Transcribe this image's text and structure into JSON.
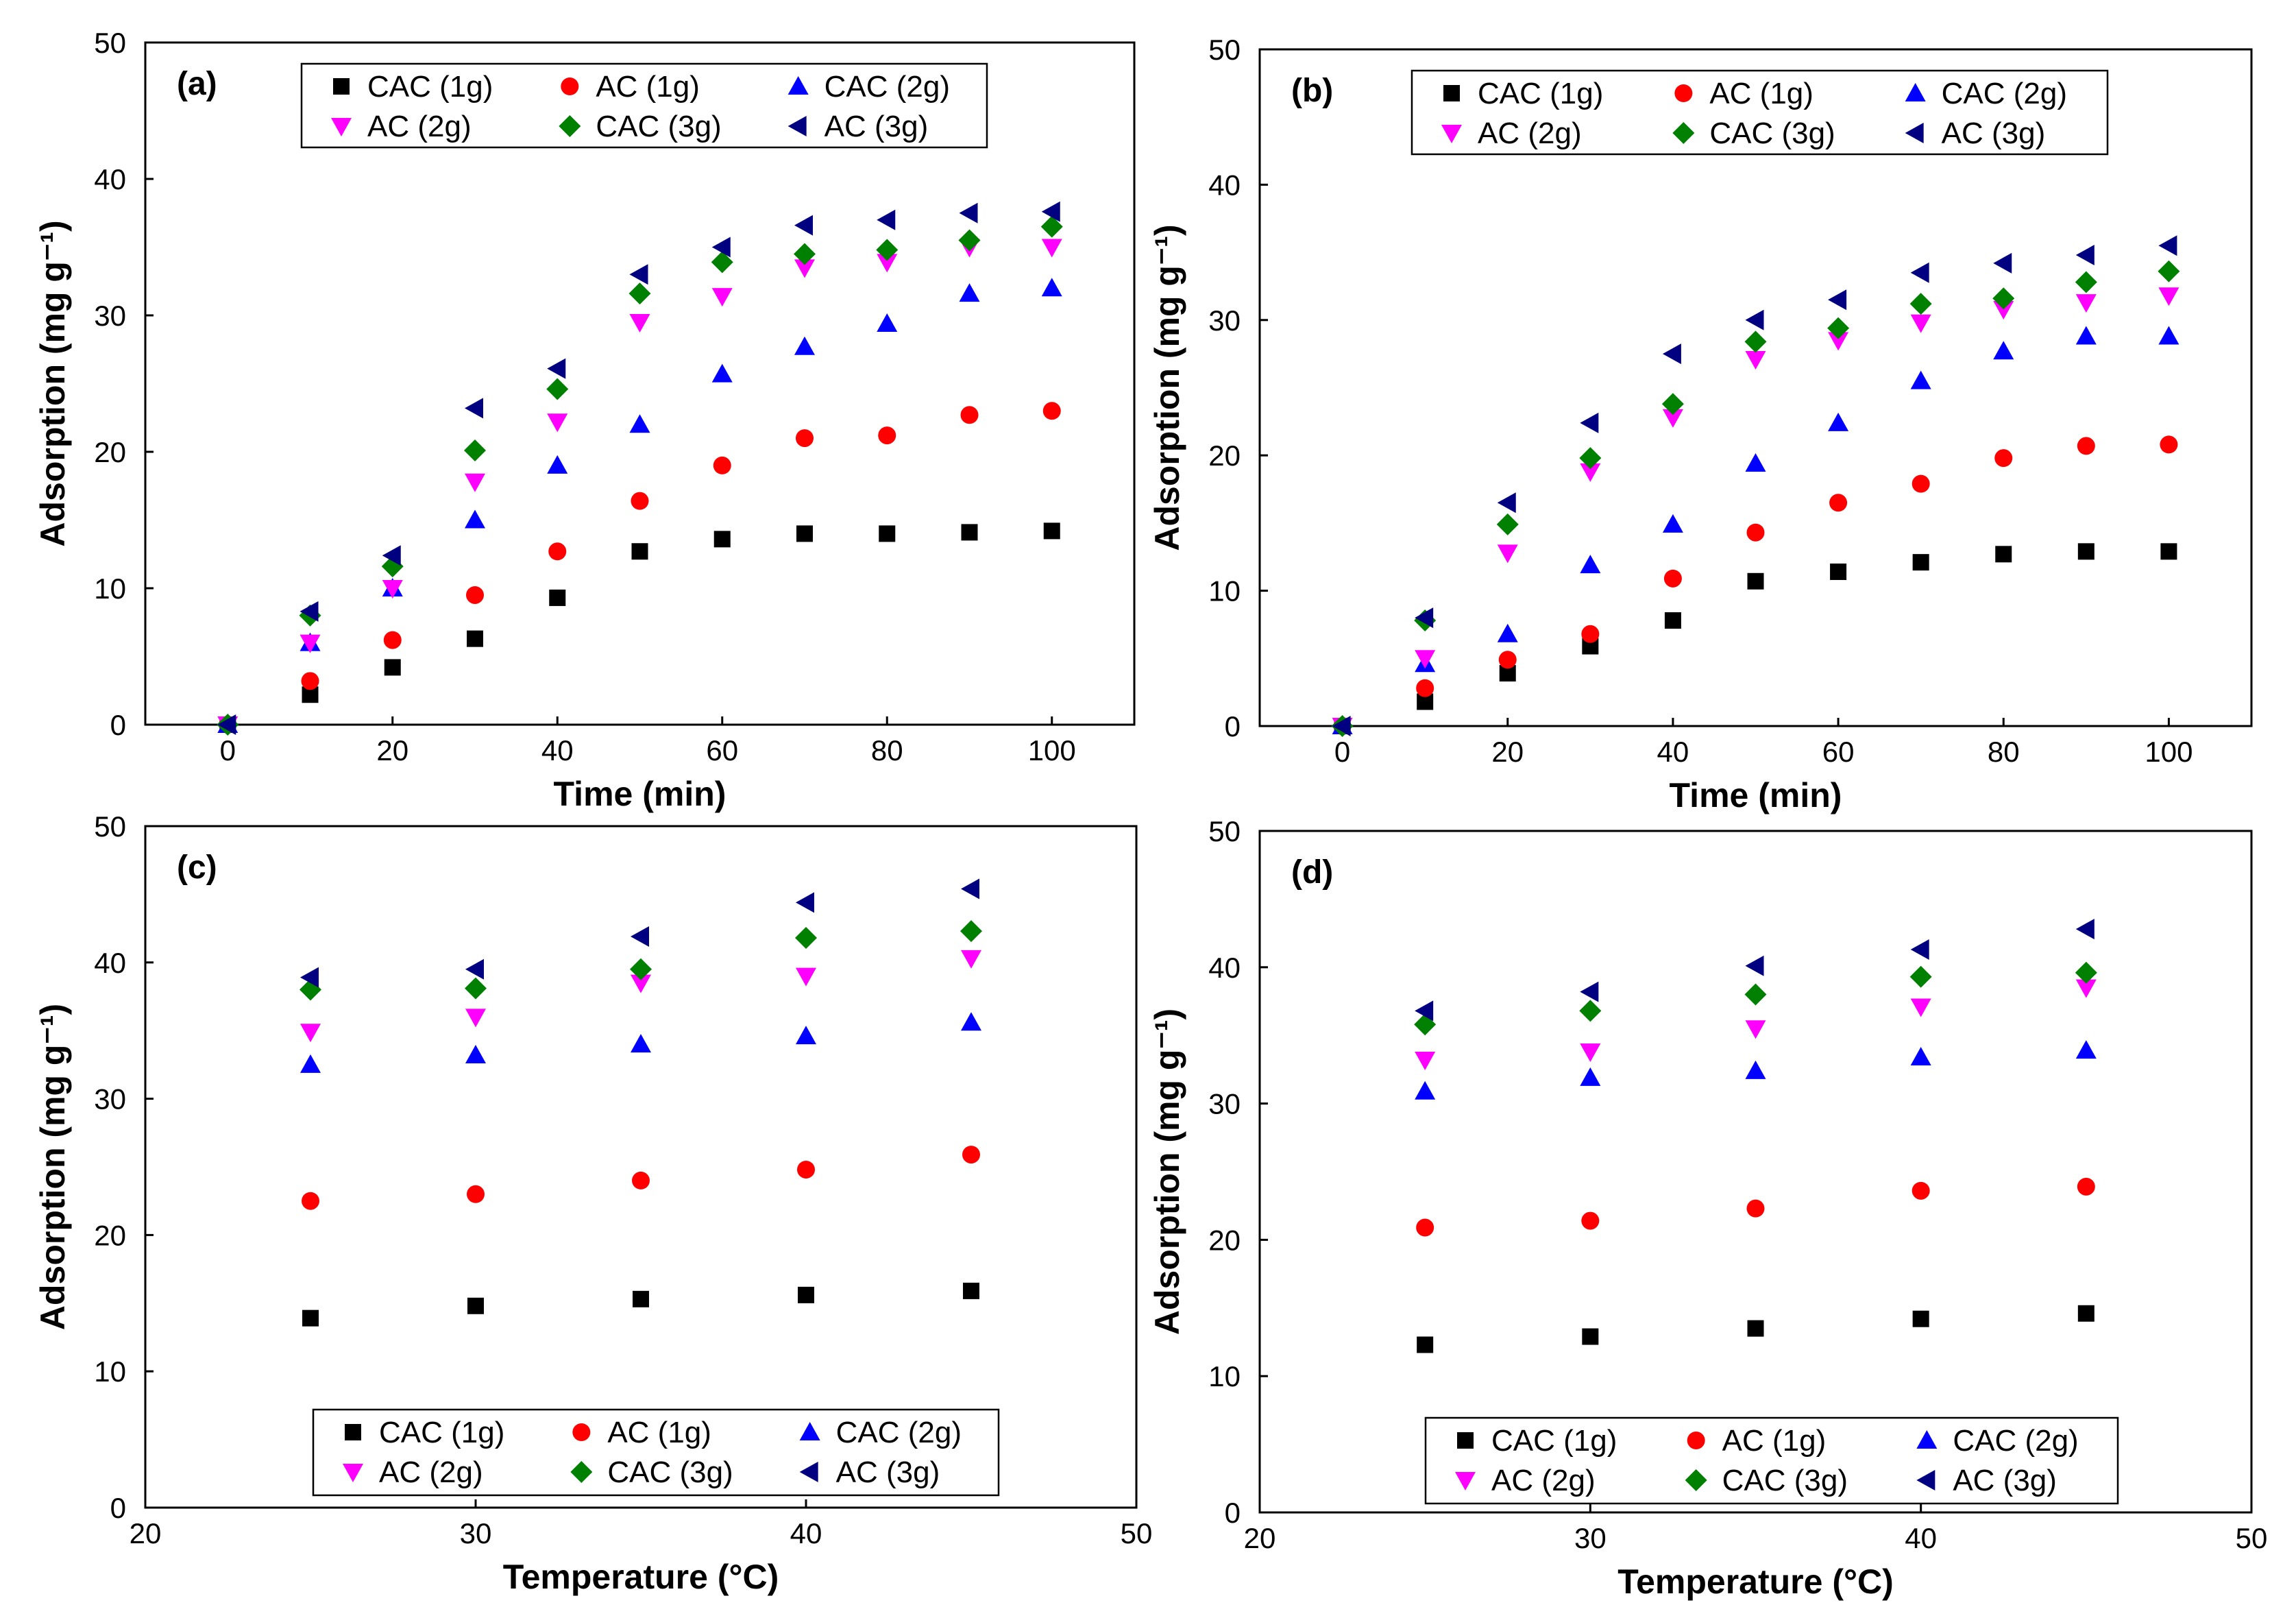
{
  "colors": {
    "CAC (1g)": "#000000",
    "AC (1g)": "#ff0000",
    "CAC (2g)": "#0000ff",
    "AC (2g)": "#ff00ff",
    "CAC (3g)": "#008000",
    "AC (3g)": "#000080"
  },
  "chart_data": [
    {
      "type": "scatter",
      "panel_label": "(a)",
      "xlabel": "Time (min)",
      "ylabel": "Adsorption (mg g⁻¹)",
      "xlim": [
        -10,
        110
      ],
      "ylim": [
        0,
        50
      ],
      "xticks": [
        0,
        20,
        40,
        60,
        80,
        100
      ],
      "yticks": [
        0,
        10,
        20,
        30,
        40,
        50
      ],
      "legend_position": "top",
      "x": [
        0,
        10,
        20,
        30,
        40,
        50,
        60,
        70,
        80,
        90,
        100
      ],
      "series": [
        {
          "name": "CAC (1g)",
          "marker": "square",
          "values": [
            0,
            2.2,
            4.2,
            6.3,
            9.3,
            12.7,
            13.6,
            14.0,
            14.0,
            14.1,
            14.2
          ]
        },
        {
          "name": "AC (1g)",
          "marker": "circle",
          "values": [
            0,
            3.2,
            6.2,
            9.5,
            12.7,
            16.4,
            19.0,
            21.0,
            21.2,
            22.7,
            23.0
          ]
        },
        {
          "name": "CAC (2g)",
          "marker": "triangle-up",
          "values": [
            0,
            6.0,
            10.0,
            15.0,
            19.0,
            22.0,
            25.7,
            27.7,
            29.4,
            31.6,
            32.0
          ]
        },
        {
          "name": "AC (2g)",
          "marker": "triangle-down",
          "values": [
            0,
            6.0,
            10.0,
            17.8,
            22.2,
            29.5,
            31.4,
            33.5,
            33.9,
            35.0,
            35.0
          ]
        },
        {
          "name": "CAC (3g)",
          "marker": "diamond",
          "values": [
            0,
            8.0,
            11.6,
            20.1,
            24.6,
            31.6,
            33.9,
            34.5,
            34.8,
            35.5,
            36.5
          ]
        },
        {
          "name": "AC (3g)",
          "marker": "triangle-left",
          "values": [
            0,
            8.3,
            12.4,
            23.2,
            26.1,
            33.0,
            35.0,
            36.6,
            37.0,
            37.5,
            37.6
          ]
        }
      ]
    },
    {
      "type": "scatter",
      "panel_label": "(b)",
      "xlabel": "Time (min)",
      "ylabel": "Adsorption (mg g⁻¹)",
      "xlim": [
        -10,
        110
      ],
      "ylim": [
        0,
        50
      ],
      "xticks": [
        0,
        20,
        40,
        60,
        80,
        100
      ],
      "yticks": [
        0,
        10,
        20,
        30,
        40,
        50
      ],
      "legend_position": "top",
      "x": [
        0,
        10,
        20,
        30,
        40,
        50,
        60,
        70,
        80,
        90,
        100
      ],
      "series": [
        {
          "name": "CAC (1g)",
          "marker": "square",
          "values": [
            0,
            1.8,
            3.9,
            5.9,
            7.8,
            10.7,
            11.4,
            12.1,
            12.7,
            12.9,
            12.9
          ]
        },
        {
          "name": "AC (1g)",
          "marker": "circle",
          "values": [
            0,
            2.8,
            4.9,
            6.8,
            10.9,
            14.3,
            16.5,
            17.9,
            19.8,
            20.7,
            20.8
          ]
        },
        {
          "name": "CAC (2g)",
          "marker": "triangle-up",
          "values": [
            0,
            4.6,
            6.8,
            11.9,
            14.9,
            19.4,
            22.4,
            25.5,
            27.7,
            28.8,
            28.8
          ]
        },
        {
          "name": "AC (2g)",
          "marker": "triangle-down",
          "values": [
            0,
            5.0,
            12.8,
            18.8,
            22.8,
            27.1,
            28.5,
            29.8,
            30.8,
            31.3,
            31.8
          ]
        },
        {
          "name": "CAC (3g)",
          "marker": "diamond",
          "values": [
            0,
            7.8,
            14.9,
            19.8,
            23.8,
            28.4,
            29.4,
            31.2,
            31.6,
            32.8,
            33.6
          ]
        },
        {
          "name": "AC (3g)",
          "marker": "triangle-left",
          "values": [
            0,
            8.0,
            16.5,
            22.4,
            27.5,
            30.0,
            31.5,
            33.5,
            34.2,
            34.8,
            35.5
          ]
        }
      ]
    },
    {
      "type": "scatter",
      "panel_label": "(c)",
      "xlabel": "Temperature (°C)",
      "ylabel": "Adsorption (mg g⁻¹)",
      "xlim": [
        20,
        50
      ],
      "ylim": [
        0,
        50
      ],
      "xticks": [
        20,
        30,
        40,
        50
      ],
      "yticks": [
        0,
        10,
        20,
        30,
        40,
        50
      ],
      "legend_position": "bottom",
      "x": [
        25,
        30,
        35,
        40,
        45
      ],
      "series": [
        {
          "name": "CAC (1g)",
          "marker": "square",
          "values": [
            13.9,
            14.8,
            15.3,
            15.6,
            15.9
          ]
        },
        {
          "name": "AC (1g)",
          "marker": "circle",
          "values": [
            22.5,
            23.0,
            24.0,
            24.8,
            25.9
          ]
        },
        {
          "name": "CAC (2g)",
          "marker": "triangle-up",
          "values": [
            32.5,
            33.2,
            34.0,
            34.6,
            35.6
          ]
        },
        {
          "name": "AC (2g)",
          "marker": "triangle-down",
          "values": [
            34.9,
            36.0,
            38.5,
            39.0,
            40.3
          ]
        },
        {
          "name": "CAC (3g)",
          "marker": "diamond",
          "values": [
            38.0,
            38.1,
            39.5,
            41.8,
            42.3
          ]
        },
        {
          "name": "AC (3g)",
          "marker": "triangle-left",
          "values": [
            38.9,
            39.5,
            41.9,
            44.4,
            45.4
          ]
        }
      ]
    },
    {
      "type": "scatter",
      "panel_label": "(d)",
      "xlabel": "Temperature (°C)",
      "ylabel": "Adsorption (mg g⁻¹)",
      "xlim": [
        20,
        50
      ],
      "ylim": [
        0,
        50
      ],
      "xticks": [
        20,
        30,
        40,
        50
      ],
      "yticks": [
        0,
        10,
        20,
        30,
        40,
        50
      ],
      "legend_position": "bottom",
      "x": [
        25,
        30,
        35,
        40,
        45
      ],
      "series": [
        {
          "name": "CAC (1g)",
          "marker": "square",
          "values": [
            12.3,
            12.9,
            13.5,
            14.2,
            14.6
          ]
        },
        {
          "name": "AC (1g)",
          "marker": "circle",
          "values": [
            20.9,
            21.4,
            22.3,
            23.6,
            23.9
          ]
        },
        {
          "name": "CAC (2g)",
          "marker": "triangle-up",
          "values": [
            30.9,
            31.9,
            32.4,
            33.4,
            33.9
          ]
        },
        {
          "name": "AC (2g)",
          "marker": "triangle-down",
          "values": [
            33.2,
            33.8,
            35.5,
            37.1,
            38.5
          ]
        },
        {
          "name": "CAC (3g)",
          "marker": "diamond",
          "values": [
            35.8,
            36.8,
            38.0,
            39.3,
            39.6
          ]
        },
        {
          "name": "AC (3g)",
          "marker": "triangle-left",
          "values": [
            36.8,
            38.2,
            40.1,
            41.3,
            42.8
          ]
        }
      ]
    }
  ]
}
